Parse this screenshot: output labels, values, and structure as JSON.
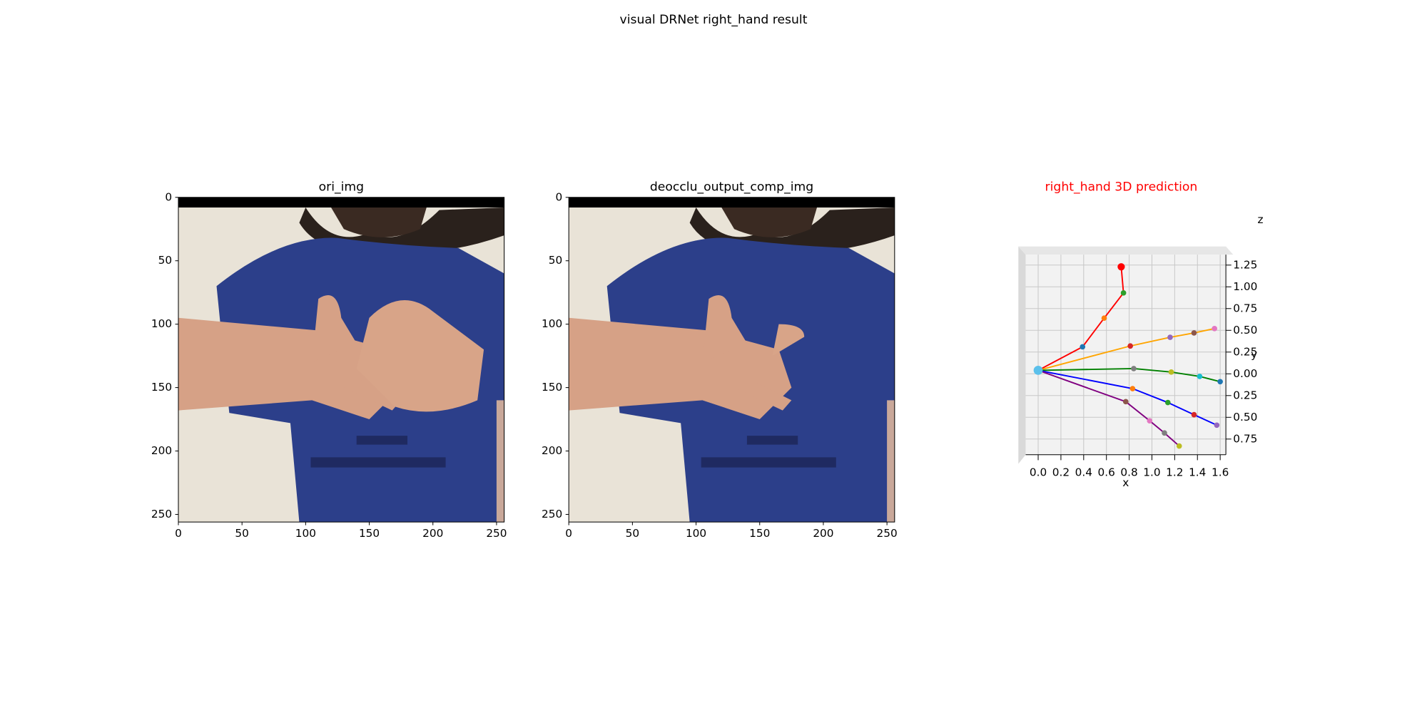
{
  "title": "visual DRNet right_hand result",
  "chart_data": [
    {
      "type": "image",
      "title": "ori_img",
      "xlim": [
        0,
        256
      ],
      "ylim": [
        256,
        0
      ],
      "xticks": [
        0,
        50,
        100,
        150,
        200,
        250
      ],
      "yticks": [
        0,
        50,
        100,
        150,
        200,
        250
      ]
    },
    {
      "type": "image",
      "title": "deocclu_output_comp_img",
      "xlim": [
        0,
        256
      ],
      "ylim": [
        256,
        0
      ],
      "xticks": [
        0,
        50,
        100,
        150,
        200,
        250
      ],
      "yticks": [
        0,
        50,
        100,
        150,
        200,
        250
      ]
    },
    {
      "type": "line3d",
      "title": "right_hand 3D prediction",
      "title_color": "#ff0000",
      "x_label": "x",
      "y_label": "y",
      "z_label": "z",
      "xlim": [
        -0.11,
        1.65
      ],
      "ylim": [
        -0.93,
        1.37
      ],
      "xticks": [
        {
          "value": 0,
          "label": "0.0"
        },
        {
          "value": 0.2,
          "label": "0.2"
        },
        {
          "value": 0.4,
          "label": "0.4"
        },
        {
          "value": 0.6,
          "label": "0.6"
        },
        {
          "value": 0.8,
          "label": "0.8"
        },
        {
          "value": 1.0,
          "label": "1.0"
        },
        {
          "value": 1.2,
          "label": "1.2"
        },
        {
          "value": 1.4,
          "label": "1.4"
        },
        {
          "value": 1.6,
          "label": "1.6"
        }
      ],
      "yticks": [
        {
          "value": 1.25,
          "label": "1.25"
        },
        {
          "value": 1.0,
          "label": "1.00"
        },
        {
          "value": 0.75,
          "label": "0.75"
        },
        {
          "value": 0.5,
          "label": "0.50"
        },
        {
          "value": 0.25,
          "label": "0.25"
        },
        {
          "value": 0,
          "label": "0.00"
        },
        {
          "value": -0.25,
          "label": "0.25"
        },
        {
          "value": -0.5,
          "label": "0.50"
        },
        {
          "value": -0.75,
          "label": "0.75"
        }
      ],
      "grid": true,
      "root": {
        "x": 0,
        "y": 0.04,
        "color": "#5bc0eb"
      },
      "series": [
        {
          "color": "#ff0000",
          "x": [
            0.39,
            0.58,
            0.75,
            0.73
          ],
          "values": [
            0.31,
            0.64,
            0.93,
            1.23
          ],
          "marker_colors": [
            "#1f77b4",
            "#ff7f0e",
            "#2ca02c",
            "#ff0000"
          ]
        },
        {
          "color": "#ffa500",
          "x": [
            0.81,
            1.16,
            1.37,
            1.55
          ],
          "values": [
            0.32,
            0.42,
            0.47,
            0.52
          ],
          "marker_colors": [
            "#d62728",
            "#9467bd",
            "#8c564b",
            "#e377c2"
          ]
        },
        {
          "color": "#008000",
          "x": [
            0.84,
            1.17,
            1.42,
            1.6
          ],
          "values": [
            0.06,
            0.02,
            -0.03,
            -0.09
          ],
          "marker_colors": [
            "#7f7f7f",
            "#bcbd22",
            "#17becf",
            "#1f77b4"
          ]
        },
        {
          "color": "#0000ff",
          "x": [
            0.83,
            1.14,
            1.37,
            1.57
          ],
          "values": [
            -0.17,
            -0.33,
            -0.47,
            -0.59
          ],
          "marker_colors": [
            "#ff7f0e",
            "#2ca02c",
            "#d62728",
            "#9467bd"
          ]
        },
        {
          "color": "#800080",
          "x": [
            0.77,
            0.98,
            1.11,
            1.24
          ],
          "values": [
            -0.32,
            -0.54,
            -0.68,
            -0.83
          ],
          "marker_colors": [
            "#8c564b",
            "#e377c2",
            "#7f7f7f",
            "#bcbd22"
          ]
        }
      ]
    }
  ]
}
